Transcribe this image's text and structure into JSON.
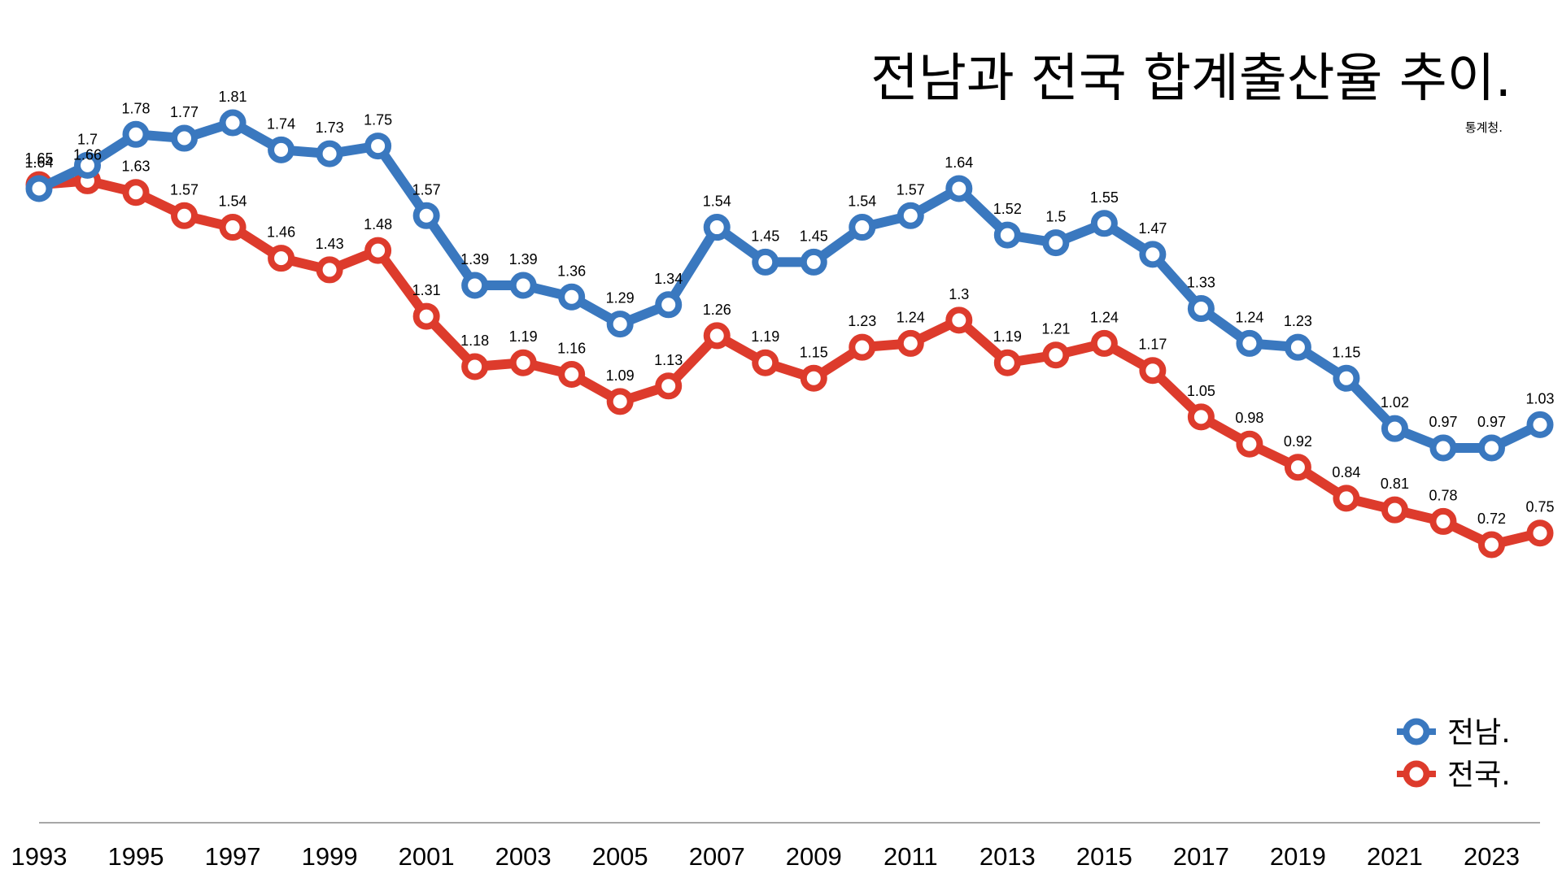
{
  "chart_data": {
    "type": "line",
    "title": "전남과 전국 합계출산율 추이.",
    "source": "통계청.",
    "x": [
      1993,
      1994,
      1995,
      1996,
      1997,
      1998,
      1999,
      2000,
      2001,
      2002,
      2003,
      2004,
      2005,
      2006,
      2007,
      2008,
      2009,
      2010,
      2011,
      2012,
      2013,
      2014,
      2015,
      2016,
      2017,
      2018,
      2019,
      2020,
      2021,
      2022,
      2023,
      2024
    ],
    "xticks": [
      "1993",
      "1995",
      "1997",
      "1999",
      "2001",
      "2003",
      "2005",
      "2007",
      "2009",
      "2011",
      "2013",
      "2015",
      "2017",
      "2019",
      "2021",
      "2023"
    ],
    "series": [
      {
        "name": "전남.",
        "color": "#3a78bf",
        "values": [
          1.64,
          1.7,
          1.78,
          1.77,
          1.81,
          1.74,
          1.73,
          1.75,
          1.57,
          1.39,
          1.39,
          1.36,
          1.29,
          1.34,
          1.54,
          1.45,
          1.45,
          1.54,
          1.57,
          1.64,
          1.52,
          1.5,
          1.55,
          1.47,
          1.33,
          1.24,
          1.23,
          1.15,
          1.02,
          0.97,
          0.97,
          1.03
        ],
        "labels": [
          "1.64",
          "1.7",
          "1.78",
          "1.77",
          "1.81",
          "1.74",
          "1.73",
          "1.75",
          "1.57",
          "1.39",
          "1.39",
          "1.36",
          "1.29",
          "1.34",
          "1.54",
          "1.45",
          "1.45",
          "1.54",
          "1.57",
          "1.64",
          "1.52",
          "1.5",
          "1.55",
          "1.47",
          "1.33",
          "1.24",
          "1.23",
          "1.15",
          "1.02",
          "0.97",
          "0.97",
          "1.03"
        ]
      },
      {
        "name": "전국.",
        "color": "#dd3b2c",
        "values": [
          1.65,
          1.66,
          1.63,
          1.57,
          1.54,
          1.46,
          1.43,
          1.48,
          1.31,
          1.18,
          1.19,
          1.16,
          1.09,
          1.13,
          1.26,
          1.19,
          1.15,
          1.23,
          1.24,
          1.3,
          1.19,
          1.21,
          1.24,
          1.17,
          1.05,
          0.98,
          0.92,
          0.84,
          0.81,
          0.78,
          0.72,
          0.75
        ],
        "labels": [
          "1.65",
          "1.66",
          "1.63",
          "1.57",
          "1.54",
          "1.46",
          "1.43",
          "1.48",
          "1.31",
          "1.18",
          "1.19",
          "1.16",
          "1.09",
          "1.13",
          "1.26",
          "1.19",
          "1.15",
          "1.23",
          "1.24",
          "1.3",
          "1.19",
          "1.21",
          "1.24",
          "1.17",
          "1.05",
          "0.98",
          "0.92",
          "0.84",
          "0.81",
          "0.78",
          "0.72",
          "0.75"
        ]
      }
    ],
    "grid": false,
    "legend_position": "bottom-right",
    "axis_line_color": "#8a8a8a"
  }
}
